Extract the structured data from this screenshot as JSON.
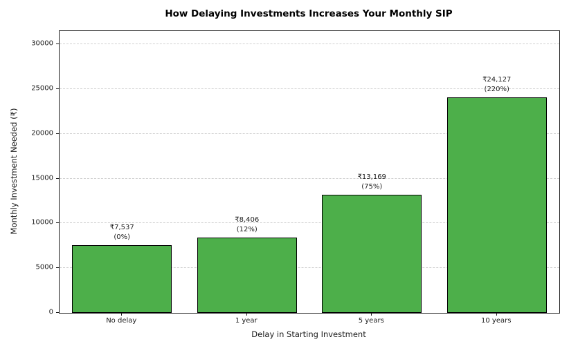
{
  "title": "How Delaying Investments Increases Your Monthly SIP",
  "chart_data": {
    "type": "bar",
    "title": "How Delaying Investments Increases Your Monthly SIP",
    "xlabel": "Delay in Starting Investment",
    "ylabel": "Monthly Investment Needed (₹)",
    "categories": [
      "No delay",
      "1 year",
      "5 years",
      "10 years"
    ],
    "values": [
      7537,
      8406,
      13169,
      24127
    ],
    "bar_labels_value": [
      "₹7,537",
      "₹8,406",
      "₹13,169",
      "₹24,127"
    ],
    "bar_labels_percent": [
      "(0%)",
      "(12%)",
      "(75%)",
      "(220%)"
    ],
    "ylim": [
      0,
      31500
    ],
    "yticks": [
      0,
      5000,
      10000,
      15000,
      20000,
      25000,
      30000
    ],
    "grid": "horizontal-dashed",
    "legend": "none",
    "bar_color": "#4daf4a",
    "bar_edge_color": "#000000",
    "gridline_color": "#d0d0d0",
    "bar_width_fraction": 0.8
  }
}
